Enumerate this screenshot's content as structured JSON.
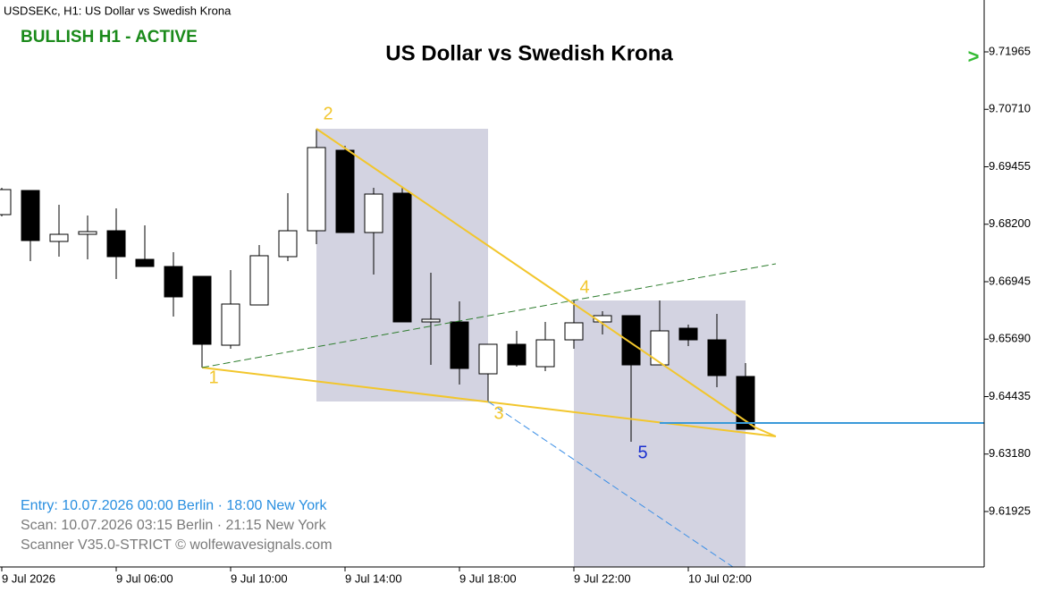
{
  "chart_data": {
    "type": "candlestick",
    "header": "USDSEKc, H1:  US Dollar vs Swedish Krona",
    "status": "BULLISH H1 - ACTIVE",
    "title": "US Dollar vs Swedish Krona",
    "info": [
      {
        "text": "Entry: 10.07.2026  00:00 Berlin · 18:00 New York",
        "color": "#2a8fe0"
      },
      {
        "text": "Scan:  10.07.2026  03:15 Berlin · 21:15 New York",
        "color": "#7a7a7a"
      },
      {
        "text": "Scanner V35.0-STRICT   © wolfewavesignals.com",
        "color": "#7a7a7a"
      }
    ],
    "target_marker": {
      "text": ">",
      "price": 9.71835,
      "color": "#33bb33"
    },
    "categories": [
      "9 Jul 2026",
      null,
      null,
      null,
      "9 Jul 06:00",
      null,
      null,
      null,
      "9 Jul 10:00",
      null,
      null,
      null,
      "9 Jul 14:00",
      null,
      null,
      null,
      "9 Jul 18:00",
      null,
      null,
      null,
      "9 Jul 22:00",
      null,
      null,
      null,
      "10 Jul 02:00",
      null,
      null
    ],
    "open": [
      9.6841,
      9.68937,
      9.67824,
      9.6798,
      9.68058,
      9.67433,
      9.67277,
      9.67062,
      9.65558,
      9.66437,
      9.67492,
      9.68058,
      9.69816,
      9.68019,
      9.68879,
      9.66066,
      9.66066,
      9.64933,
      9.65578,
      9.65089,
      9.65675,
      9.66066,
      9.66203,
      9.65128,
      9.65929,
      9.65675,
      9.64875
    ],
    "high": [
      9.68996,
      9.68937,
      9.68625,
      9.68391,
      9.68547,
      9.68176,
      9.6759,
      9.67062,
      9.67199,
      9.67746,
      9.68879,
      9.70285,
      9.69914,
      9.68996,
      9.68996,
      9.6714,
      9.66515,
      9.65578,
      9.65871,
      9.66066,
      9.66535,
      9.663,
      9.66203,
      9.66535,
      9.66007,
      9.66242,
      9.65168
    ],
    "low": [
      9.68371,
      9.67394,
      9.67492,
      9.67433,
      9.67004,
      9.67277,
      9.66183,
      9.6507,
      9.6548,
      9.66437,
      9.67394,
      9.67765,
      9.68019,
      9.67101,
      9.66066,
      9.65128,
      9.64699,
      9.64328,
      9.65089,
      9.64992,
      9.6548,
      9.65793,
      9.63449,
      9.65128,
      9.65539,
      9.6464,
      9.63722
    ],
    "close": [
      9.68957,
      9.67844,
      9.6798,
      9.68039,
      9.67492,
      9.67277,
      9.66613,
      9.65578,
      9.66457,
      9.67512,
      9.68058,
      9.69875,
      9.68019,
      9.68859,
      9.66066,
      9.66125,
      9.6505,
      9.65578,
      9.65128,
      9.65675,
      9.66047,
      9.66203,
      9.65128,
      9.65871,
      9.65675,
      9.64894,
      9.63722
    ],
    "ylim": [
      9.60714,
      9.73098
    ],
    "yticks": [
      9.71965,
      {
        "value": 9.7071,
        "label": "9.70710"
      },
      9.69455,
      {
        "value": 9.682,
        "label": "9.68200"
      },
      9.66945,
      {
        "value": 9.6569,
        "label": "9.65690"
      },
      9.64435,
      {
        "value": 9.6318,
        "label": "9.63180"
      },
      9.61925
    ],
    "zones": [
      {
        "x": [
          11,
          17
        ],
        "price": [
          9.70285,
          9.64328
        ],
        "color": "#d3d3e1"
      },
      {
        "x": [
          20,
          26
        ],
        "price": [
          9.66535,
          9.60714
        ],
        "color": "#d3d3e1"
      }
    ],
    "lines": [
      {
        "points": [
          [
            7,
            9.6507
          ],
          [
            27.06,
            9.63566
          ]
        ],
        "color": "#f2c62c",
        "dash": false
      },
      {
        "points": [
          [
            11,
            9.70285
          ],
          [
            26.34,
            9.63761
          ],
          [
            27.06,
            9.63566
          ]
        ],
        "color": "#f2c62c",
        "dash": false
      },
      {
        "points": [
          [
            7,
            9.6507
          ],
          [
            27.06,
            9.67336
          ]
        ],
        "color": "#2e7d2e",
        "dash": true
      },
      {
        "points": [
          [
            17,
            9.64328
          ],
          [
            25.56,
            9.60714
          ]
        ],
        "color": "#3a8ee6",
        "dash": true
      },
      {
        "points": [
          [
            23,
            9.63859
          ],
          [
            34.34,
            9.63859
          ]
        ],
        "color": "#3a9ad9",
        "dash": false
      }
    ],
    "wolfe_points": [
      {
        "label": "1",
        "x": 7,
        "price": 9.6507,
        "color": "#f2c62c"
      },
      {
        "label": "2",
        "x": 11,
        "price": 9.70285,
        "color": "#f2c62c"
      },
      {
        "label": "3",
        "x": 17,
        "price": 9.64328,
        "color": "#f2c62c"
      },
      {
        "label": "4",
        "x": 20,
        "price": 9.66535,
        "color": "#f2c62c"
      },
      {
        "label": "5",
        "x": 22,
        "price": 9.63449,
        "color": "#1a2fd0"
      }
    ]
  }
}
